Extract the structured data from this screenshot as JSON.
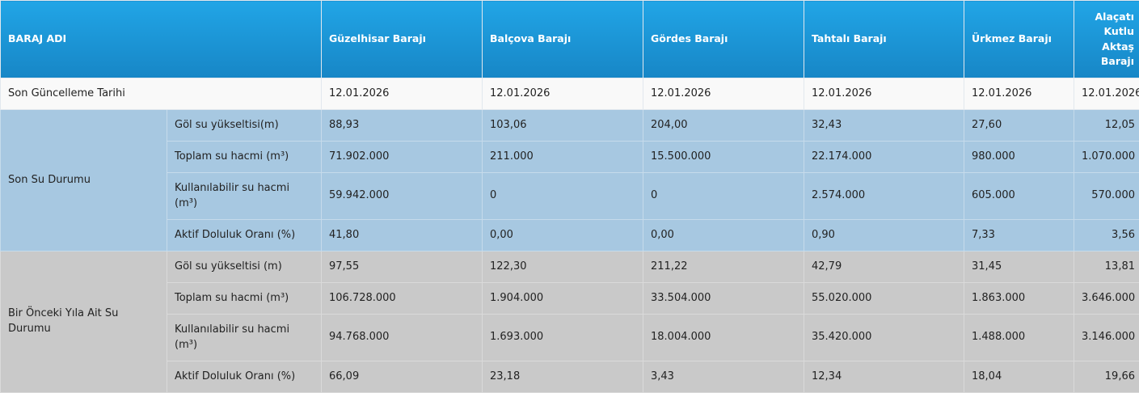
{
  "table": {
    "columns": [
      "BARAJ ADI",
      "Güzelhisar Barajı",
      "Balçova Barajı",
      "Gördes Barajı",
      "Tahtalı Barajı",
      "Ürkmez Barajı",
      "Alaçatı Kutlu Aktaş Barajı"
    ],
    "update": {
      "label": "Son Güncelleme Tarihi",
      "values": [
        "12.01.2026",
        "12.01.2026",
        "12.01.2026",
        "12.01.2026",
        "12.01.2026",
        "12.01.2026"
      ]
    },
    "groups": [
      {
        "label": "Son Su Durumu",
        "rows": [
          {
            "label": "Göl su yükseltisi(m)",
            "values": [
              "88,93",
              "103,06",
              "204,00",
              "32,43",
              "27,60",
              "12,05"
            ]
          },
          {
            "label": "Toplam su hacmi (m³)",
            "values": [
              "71.902.000",
              "211.000",
              "15.500.000",
              "22.174.000",
              "980.000",
              "1.070.000"
            ]
          },
          {
            "label": "Kullanılabilir su hacmi (m³)",
            "values": [
              "59.942.000",
              "0",
              "0",
              "2.574.000",
              "605.000",
              "570.000"
            ]
          },
          {
            "label": "Aktif Doluluk Oranı (%)",
            "values": [
              "41,80",
              "0,00",
              "0,00",
              "0,90",
              "7,33",
              "3,56"
            ]
          }
        ]
      },
      {
        "label": "Bir Önceki Yıla Ait Su Durumu",
        "rows": [
          {
            "label": "Göl su yükseltisi (m)",
            "values": [
              "97,55",
              "122,30",
              "211,22",
              "42,79",
              "31,45",
              "13,81"
            ]
          },
          {
            "label": "Toplam su hacmi (m³)",
            "values": [
              "106.728.000",
              "1.904.000",
              "33.504.000",
              "55.020.000",
              "1.863.000",
              "3.646.000"
            ]
          },
          {
            "label": "Kullanılabilir su hacmi (m³)",
            "values": [
              "94.768.000",
              "1.693.000",
              "18.004.000",
              "35.420.000",
              "1.488.000",
              "3.146.000"
            ]
          },
          {
            "label": "Aktif Doluluk Oranı (%)",
            "values": [
              "66,09",
              "23,18",
              "3,43",
              "12,34",
              "18,04",
              "19,66"
            ]
          }
        ]
      }
    ]
  },
  "colors": {
    "header_top": "#21a5e6",
    "header_bottom": "#1786c6",
    "current_bg": "#a7c8e1",
    "previous_bg": "#c9c9c9"
  }
}
